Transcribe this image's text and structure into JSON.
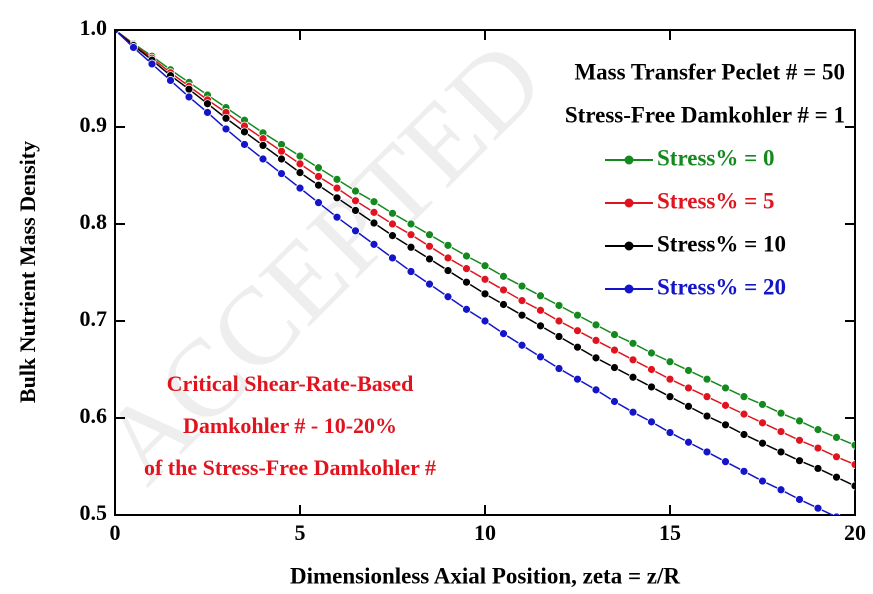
{
  "chart_data": {
    "type": "line",
    "xlabel": "Dimensionless Axial Position, zeta = z/R",
    "ylabel": "Bulk Nutrient Mass Density",
    "annotations": [
      "Mass Transfer Peclet # = 50",
      "Stress-Free Damkohler # = 1"
    ],
    "note_lines": [
      "Critical Shear-Rate-Based",
      "Damkohler # -  10-20%",
      "of the Stress-Free Damkohler #"
    ],
    "note_color": "#e0141e",
    "watermark": "ACCEPTED",
    "legend": "right",
    "xlim": [
      0,
      20
    ],
    "ylim": [
      0.5,
      1.0
    ],
    "xticks": [
      0,
      5,
      10,
      15,
      20
    ],
    "yticks": [
      0.5,
      0.6,
      0.7,
      0.8,
      0.9,
      {
        "value": 1,
        "label": "1.0"
      }
    ],
    "x": [
      0,
      0.5,
      1,
      1.5,
      2,
      2.5,
      3,
      3.5,
      4,
      4.5,
      5,
      5.5,
      6,
      6.5,
      7,
      7.5,
      8,
      8.5,
      9,
      9.5,
      10,
      10.5,
      11,
      11.5,
      12,
      12.5,
      13,
      13.5,
      14,
      14.5,
      15,
      15.5,
      16,
      16.5,
      17,
      17.5,
      18,
      18.5,
      19,
      19.5,
      20
    ],
    "series": [
      {
        "name": "Stress% = 0",
        "color": "#148a1e",
        "values": [
          1.0,
          0.986,
          0.973,
          0.959,
          0.946,
          0.933,
          0.92,
          0.907,
          0.894,
          0.882,
          0.87,
          0.858,
          0.846,
          0.834,
          0.823,
          0.811,
          0.8,
          0.789,
          0.778,
          0.767,
          0.757,
          0.746,
          0.736,
          0.726,
          0.716,
          0.706,
          0.696,
          0.686,
          0.677,
          0.667,
          0.658,
          0.649,
          0.64,
          0.631,
          0.622,
          0.614,
          0.605,
          0.597,
          0.588,
          0.58,
          0.572
        ]
      },
      {
        "name": "Stress% = 5",
        "color": "#e0141e",
        "values": [
          1.0,
          0.985,
          0.971,
          0.956,
          0.942,
          0.928,
          0.915,
          0.901,
          0.888,
          0.875,
          0.862,
          0.849,
          0.837,
          0.824,
          0.812,
          0.8,
          0.789,
          0.777,
          0.765,
          0.754,
          0.743,
          0.732,
          0.721,
          0.711,
          0.7,
          0.69,
          0.68,
          0.67,
          0.66,
          0.65,
          0.64,
          0.631,
          0.622,
          0.613,
          0.604,
          0.595,
          0.586,
          0.577,
          0.569,
          0.56,
          0.552
        ]
      },
      {
        "name": "Stress% = 10",
        "color": "#000000",
        "values": [
          1.0,
          0.984,
          0.969,
          0.953,
          0.939,
          0.924,
          0.909,
          0.895,
          0.881,
          0.867,
          0.853,
          0.84,
          0.827,
          0.814,
          0.801,
          0.788,
          0.776,
          0.764,
          0.752,
          0.74,
          0.728,
          0.717,
          0.706,
          0.695,
          0.684,
          0.673,
          0.662,
          0.652,
          0.642,
          0.632,
          0.622,
          0.612,
          0.602,
          0.593,
          0.583,
          0.574,
          0.565,
          0.556,
          0.548,
          0.539,
          0.53
        ]
      },
      {
        "name": "Stress% = 20",
        "color": "#1414c8",
        "values": [
          1.0,
          0.982,
          0.965,
          0.948,
          0.931,
          0.915,
          0.898,
          0.882,
          0.867,
          0.852,
          0.837,
          0.822,
          0.807,
          0.793,
          0.779,
          0.765,
          0.751,
          0.738,
          0.725,
          0.712,
          0.7,
          0.687,
          0.675,
          0.663,
          0.651,
          0.64,
          0.629,
          0.617,
          0.606,
          0.596,
          0.585,
          0.575,
          0.565,
          0.555,
          0.545,
          0.535,
          0.526,
          0.516,
          0.507,
          0.498,
          0.49
        ]
      }
    ]
  }
}
